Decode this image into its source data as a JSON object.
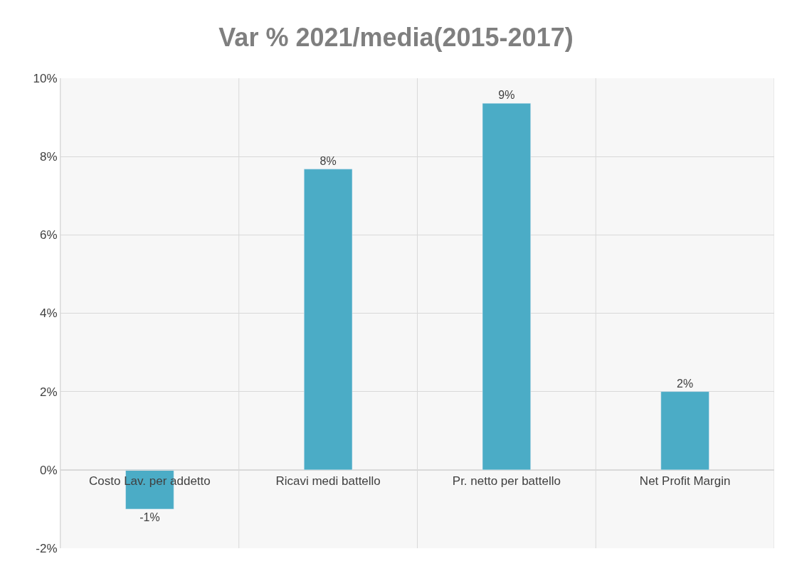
{
  "chart_data": {
    "type": "bar",
    "title": "Var % 2021/media(2015-2017)",
    "categories": [
      "Costo Lav. per addetto",
      "Ricavi medi battello",
      "Pr. netto per battello",
      "Net Profit Margin"
    ],
    "values": [
      -1.0,
      7.68,
      9.36,
      2.0
    ],
    "value_labels": [
      "-1%",
      "8%",
      "9%",
      "2%"
    ],
    "color": "#4bacc6",
    "ylim": [
      -2,
      10
    ],
    "yticks": [
      {
        "value": -2,
        "label": "-2%"
      },
      {
        "value": 0,
        "label": "0%"
      },
      {
        "value": 2,
        "label": "2%"
      },
      {
        "value": 4,
        "label": "4%"
      },
      {
        "value": 6,
        "label": "6%"
      },
      {
        "value": 8,
        "label": "8%"
      },
      {
        "value": 10,
        "label": "10%"
      }
    ],
    "grid": true,
    "legend": false
  }
}
